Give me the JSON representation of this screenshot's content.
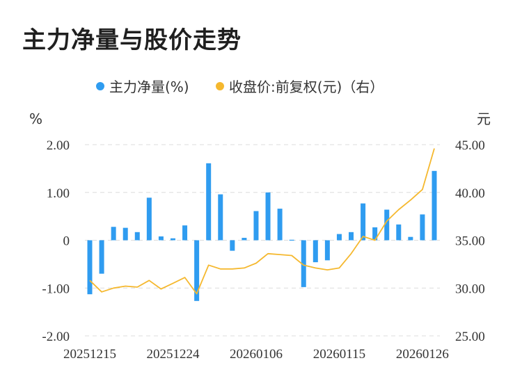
{
  "title": "主力净量与股价走势",
  "chart_data": {
    "type": "bar+line",
    "title": "主力净量与股价走势",
    "legend": [
      {
        "name": "主力净量(%)",
        "color": "#2f9cf0",
        "marker": "circle"
      },
      {
        "name": "收盘价:前复权(元)（右）",
        "color": "#f5b82e",
        "marker": "circle"
      }
    ],
    "legend_position": "top-center",
    "y_left": {
      "unit": "%",
      "range": [
        -2.0,
        2.0
      ],
      "ticks": [
        "2.00",
        "1.00",
        "0",
        "-1.00",
        "-2.00"
      ],
      "tick_values": [
        2,
        1,
        0,
        -1,
        -2
      ]
    },
    "y_right": {
      "unit": "元",
      "range": [
        25.0,
        45.0
      ],
      "ticks": [
        "45.00",
        "40.00",
        "35.00",
        "30.00",
        "25.00"
      ],
      "tick_values": [
        45,
        40,
        35,
        30,
        25
      ]
    },
    "x_tick_labels": [
      {
        "label": "20251215",
        "index": 0
      },
      {
        "label": "20251224",
        "index": 7
      },
      {
        "label": "20260106",
        "index": 14
      },
      {
        "label": "20260115",
        "index": 21
      },
      {
        "label": "20260126",
        "index": 28
      }
    ],
    "grid": "horizontal dashed",
    "series": [
      {
        "name": "主力净量(%)",
        "type": "bar",
        "color": "#2f9cf0",
        "values": [
          -1.13,
          -0.7,
          0.28,
          0.26,
          0.17,
          0.89,
          0.08,
          0.04,
          0.31,
          -1.27,
          1.61,
          0.96,
          -0.22,
          0.05,
          0.61,
          1.0,
          0.66,
          0.01,
          -0.98,
          -0.46,
          -0.42,
          0.13,
          0.17,
          0.77,
          0.27,
          0.64,
          0.33,
          0.07,
          0.54,
          1.45
        ]
      },
      {
        "name": "收盘价:前复权(元)（右）",
        "type": "line",
        "color": "#f5b82e",
        "values": [
          30.8,
          29.6,
          30.0,
          30.2,
          30.1,
          30.8,
          29.9,
          30.5,
          31.1,
          29.4,
          32.4,
          32.0,
          32.0,
          32.1,
          32.6,
          33.6,
          33.5,
          33.4,
          32.4,
          32.1,
          31.9,
          32.1,
          33.6,
          35.4,
          35.0,
          37.0,
          38.2,
          39.2,
          40.3,
          44.6
        ]
      }
    ]
  }
}
